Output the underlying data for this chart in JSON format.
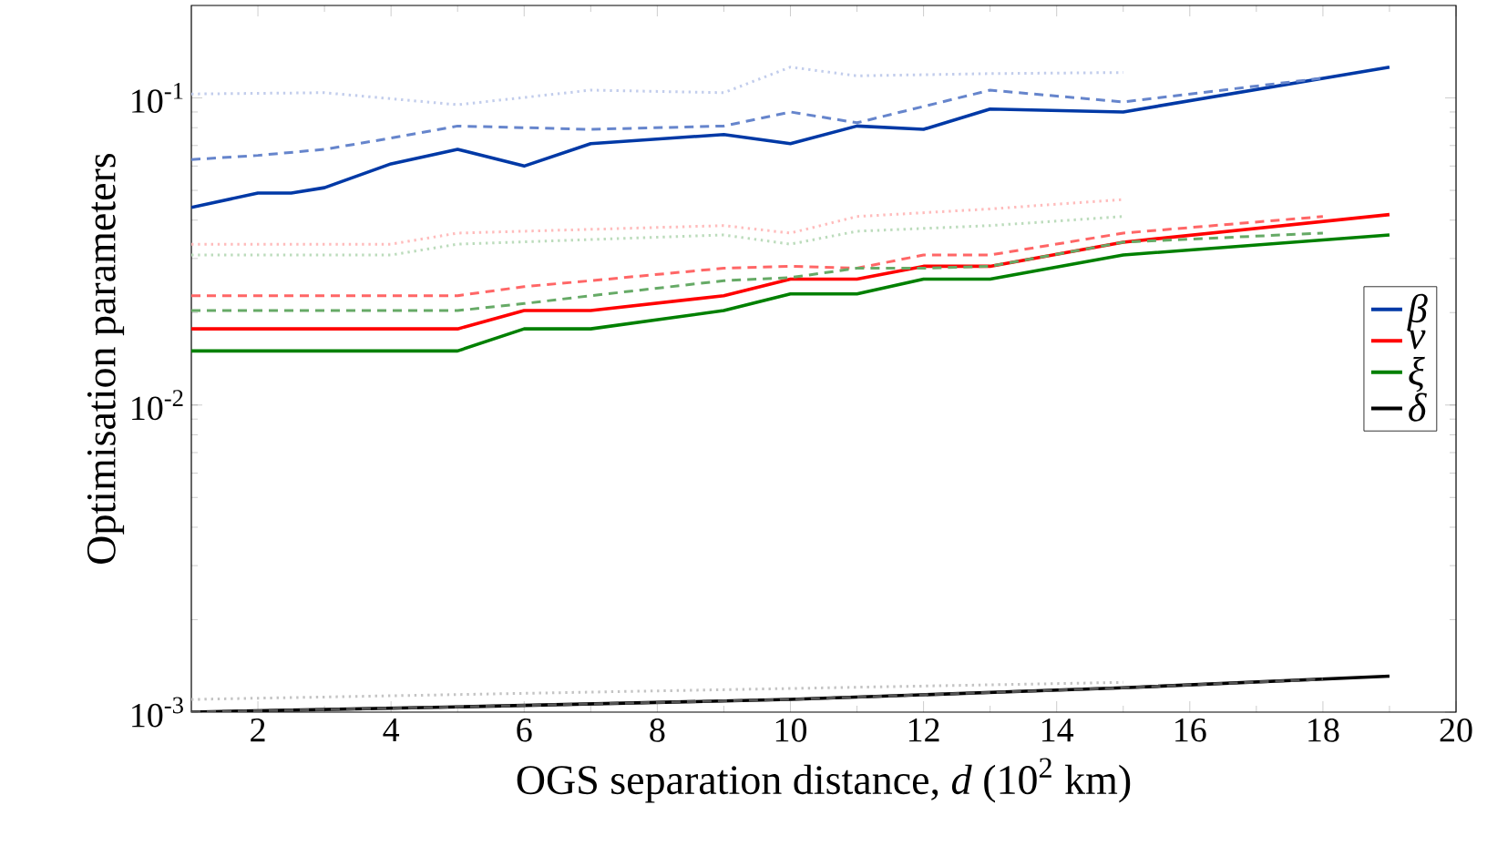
{
  "chart_data": {
    "type": "line",
    "xlabel": "OGS separation distance, *d* (10$^{2}$ km)",
    "ylabel": "Optimisation parameters",
    "log": true,
    "grid": false,
    "legend": "right",
    "xlim": [
      1,
      20
    ],
    "xticks": [
      2,
      4,
      6,
      8,
      10,
      12,
      14,
      16,
      18,
      20
    ],
    "ylim": [
      0.001,
      0.2
    ],
    "yticks": [
      {
        "value": 0.001,
        "label": "10$^{-3}$"
      },
      {
        "value": 0.01,
        "label": "10$^{-2}$"
      },
      {
        "value": 0.1,
        "label": "10$^{-1}$"
      }
    ],
    "series": [
      {
        "name": "β",
        "color": "#0039a6",
        "line_style": "solid",
        "x": [
          1,
          2,
          2.5,
          3,
          4,
          5,
          6,
          7,
          9,
          10,
          11,
          12,
          13,
          15,
          19
        ],
        "values": [
          0.044,
          0.049,
          0.049,
          0.051,
          0.061,
          0.068,
          0.06,
          0.071,
          0.076,
          0.071,
          0.081,
          0.079,
          0.092,
          0.09,
          0.126
        ]
      },
      {
        "name": "ν",
        "color": "#ff0000",
        "line_style": "solid",
        "x": [
          1,
          5,
          6,
          7,
          9,
          10,
          11,
          12,
          13,
          15,
          19
        ],
        "values": [
          0.0177,
          0.0177,
          0.0203,
          0.0203,
          0.0227,
          0.0257,
          0.0257,
          0.0283,
          0.0283,
          0.0339,
          0.0417
        ]
      },
      {
        "name": "ξ",
        "color": "#008000",
        "line_style": "solid",
        "x": [
          1,
          5,
          6,
          7,
          9,
          10,
          11,
          12,
          13,
          15,
          19
        ],
        "values": [
          0.015,
          0.015,
          0.0177,
          0.0177,
          0.0203,
          0.023,
          0.023,
          0.0257,
          0.0257,
          0.0308,
          0.0358
        ]
      },
      {
        "name": "δ",
        "color": "#000000",
        "line_style": "solid",
        "x": [
          1,
          5,
          10,
          15,
          19
        ],
        "values": [
          0.001,
          0.00104,
          0.0011,
          0.0012,
          0.00131
        ]
      },
      {
        "color": "#6685cc",
        "line_style": "dashed",
        "x": [
          1,
          2,
          3,
          4,
          5,
          6,
          7,
          9,
          10,
          11,
          13,
          15,
          18
        ],
        "values": [
          0.063,
          0.065,
          0.068,
          0.074,
          0.081,
          0.08,
          0.079,
          0.081,
          0.09,
          0.083,
          0.106,
          0.097,
          0.116
        ]
      },
      {
        "color": "#ff6666",
        "line_style": "dashed",
        "x": [
          1,
          5,
          6,
          7,
          9,
          10,
          11,
          12,
          13,
          15,
          18
        ],
        "values": [
          0.0227,
          0.0227,
          0.0243,
          0.0254,
          0.0279,
          0.0283,
          0.0279,
          0.0308,
          0.0308,
          0.0363,
          0.0411
        ]
      },
      {
        "color": "#66aa66",
        "line_style": "dashed",
        "x": [
          1,
          5,
          6,
          7,
          9,
          10,
          11,
          12,
          13,
          15,
          18
        ],
        "values": [
          0.0203,
          0.0203,
          0.0214,
          0.0227,
          0.0254,
          0.026,
          0.0279,
          0.0279,
          0.0283,
          0.0339,
          0.0363
        ]
      },
      {
        "color": "#555555",
        "line_style": "dashed",
        "x": [
          1,
          5,
          10,
          15,
          18
        ],
        "values": [
          0.001,
          0.00104,
          0.0011,
          0.0012,
          0.00128
        ]
      },
      {
        "color": "#c2cdec",
        "line_style": "dotted",
        "x": [
          1,
          3,
          5,
          7,
          9,
          10,
          11,
          13,
          15
        ],
        "values": [
          0.103,
          0.104,
          0.095,
          0.106,
          0.104,
          0.126,
          0.118,
          0.12,
          0.121
        ]
      },
      {
        "color": "#ffbcbc",
        "line_style": "dotted",
        "x": [
          1,
          4,
          5,
          9,
          10,
          11,
          13,
          15
        ],
        "values": [
          0.0334,
          0.0334,
          0.0363,
          0.0384,
          0.0363,
          0.0411,
          0.0435,
          0.0467
        ]
      },
      {
        "color": "#bcdcbc",
        "line_style": "dotted",
        "x": [
          1,
          4,
          5,
          9,
          10,
          11,
          13,
          15
        ],
        "values": [
          0.0308,
          0.0308,
          0.0334,
          0.0358,
          0.0334,
          0.0368,
          0.0384,
          0.0411
        ]
      },
      {
        "color": "#c4c4c4",
        "line_style": "dotted",
        "x": [
          1,
          15
        ],
        "values": [
          0.0011,
          0.00125
        ]
      }
    ]
  }
}
